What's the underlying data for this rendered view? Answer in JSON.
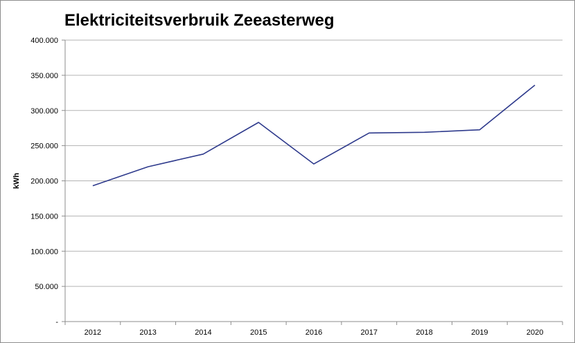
{
  "chart_data": {
    "type": "line",
    "title": "Elektriciteitsverbruik Zeeasterweg",
    "xlabel": "",
    "ylabel": "kWh",
    "categories": [
      "2012",
      "2013",
      "2014",
      "2015",
      "2016",
      "2017",
      "2018",
      "2019",
      "2020"
    ],
    "series": [
      {
        "values": [
          193000,
          220000,
          238000,
          283000,
          224000,
          268000,
          269000,
          272500,
          336000
        ]
      }
    ],
    "ylim": [
      0,
      400000
    ],
    "yticks": [
      0,
      50000,
      100000,
      150000,
      200000,
      250000,
      300000,
      350000,
      400000
    ],
    "ytick_labels": [
      "-",
      "50.000",
      "100.000",
      "150.000",
      "200.000",
      "250.000",
      "300.000",
      "350.000",
      "400.000"
    ],
    "grid": true,
    "legend": "none",
    "colors": {
      "line": "#2e3a8c",
      "grid": "#b3b3b3",
      "axis": "#8c8c8c"
    }
  }
}
